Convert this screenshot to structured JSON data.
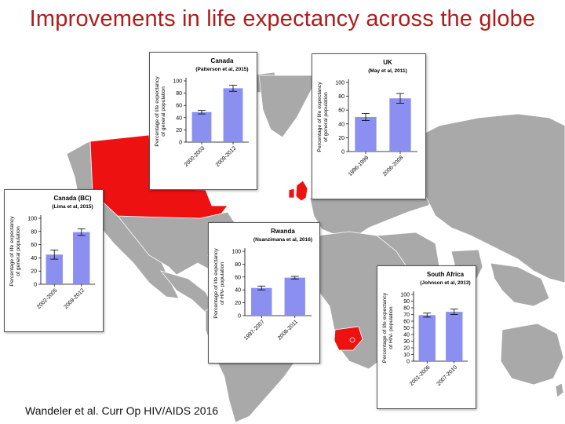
{
  "title": "Improvements in life expectancy across the globe",
  "citation": "Wandeler et al. Curr Op HIV/AIDS 2016",
  "colors": {
    "highlight": "#ee1111",
    "bar": "#8b8ff0",
    "map_land": "#a9a9a9",
    "title": "#b01c1c"
  },
  "chart_data": [
    {
      "id": "canada",
      "type": "bar",
      "title": "Canada",
      "subtitle": "(Patterson et al, 2015)",
      "ylabel": [
        "Percentage of life expectancy",
        "of general population"
      ],
      "categories": [
        "2000-2003",
        "2009-2012"
      ],
      "values": [
        49,
        88
      ],
      "errors": [
        3,
        5
      ],
      "ylim": [
        0,
        100
      ],
      "yticks": [
        0,
        20,
        40,
        60,
        80,
        100
      ]
    },
    {
      "id": "uk",
      "type": "bar",
      "title": "UK",
      "subtitle": "(May et al, 2011)",
      "ylabel": [
        "Percentage of life expectancy",
        "of general population"
      ],
      "categories": [
        "1996-1999",
        "2006-2008"
      ],
      "values": [
        50,
        77
      ],
      "errors": [
        5,
        7
      ],
      "ylim": [
        0,
        100
      ],
      "yticks": [
        0,
        20,
        40,
        60,
        80,
        100
      ]
    },
    {
      "id": "canada-bc",
      "type": "bar",
      "title": "Canada (BC)",
      "subtitle": "(Lima et al, 2015)",
      "ylabel": [
        "Percentage of life expectancy",
        "of general population"
      ],
      "categories": [
        "2002-2005",
        "2009-2012"
      ],
      "values": [
        45,
        79
      ],
      "errors": [
        7,
        5
      ],
      "ylim": [
        0,
        100
      ],
      "yticks": [
        0,
        20,
        40,
        60,
        80,
        100
      ]
    },
    {
      "id": "rwanda",
      "type": "bar",
      "title": "Rwanda",
      "subtitle": "(Nsanzimana et al, 2016)",
      "ylabel": [
        "Percentage of life expectancy",
        "of HIV- population"
      ],
      "categories": [
        "1997-2007",
        "2008-2011"
      ],
      "values": [
        43,
        59
      ],
      "errors": [
        3,
        2
      ],
      "ylim": [
        0,
        100
      ],
      "yticks": [
        0,
        20,
        40,
        60,
        80,
        100
      ]
    },
    {
      "id": "south-africa",
      "type": "bar",
      "title": "South Africa",
      "subtitle": "(Johnson et al, 2013)",
      "ylabel": [
        "Percentage of life expectancy",
        "of HIV- population"
      ],
      "categories": [
        "2001-2006",
        "2007-2010"
      ],
      "values": [
        69,
        74
      ],
      "errors": [
        3,
        4
      ],
      "ylim": [
        0,
        100
      ],
      "yticks": [
        0,
        10,
        20,
        30,
        40,
        50,
        60,
        70,
        80,
        90,
        100
      ]
    }
  ]
}
